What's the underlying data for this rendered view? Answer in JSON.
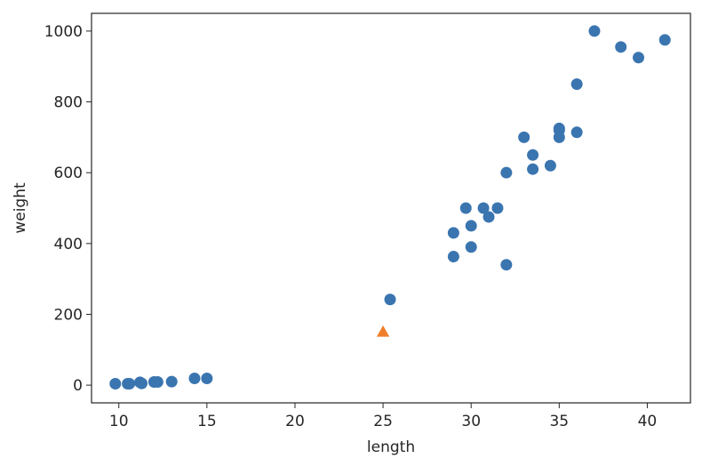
{
  "chart_data": {
    "type": "scatter",
    "title": "",
    "xlabel": "length",
    "ylabel": "weight",
    "xlim": [
      8.45,
      42.45
    ],
    "ylim": [
      -50,
      1050
    ],
    "x_ticks": [
      10,
      15,
      20,
      25,
      30,
      35,
      40
    ],
    "y_ticks": [
      0,
      200,
      400,
      600,
      800,
      1000
    ],
    "x_tick_labels": [
      "10",
      "15",
      "20",
      "25",
      "30",
      "35",
      "40"
    ],
    "y_tick_labels": [
      "0",
      "200",
      "400",
      "600",
      "800",
      "1000"
    ],
    "grid": false,
    "legend": "none",
    "series": [
      {
        "marker": "circle",
        "color": "#3a75b0",
        "points": [
          {
            "x": 9.8,
            "y": 4
          },
          {
            "x": 10.5,
            "y": 4
          },
          {
            "x": 10.6,
            "y": 4
          },
          {
            "x": 11.2,
            "y": 8
          },
          {
            "x": 11.3,
            "y": 5
          },
          {
            "x": 12.0,
            "y": 9
          },
          {
            "x": 12.2,
            "y": 9
          },
          {
            "x": 13.0,
            "y": 10
          },
          {
            "x": 14.3,
            "y": 19
          },
          {
            "x": 15.0,
            "y": 19
          },
          {
            "x": 25.4,
            "y": 242
          },
          {
            "x": 29.0,
            "y": 363
          },
          {
            "x": 29.0,
            "y": 430
          },
          {
            "x": 29.7,
            "y": 500
          },
          {
            "x": 30.0,
            "y": 390
          },
          {
            "x": 30.0,
            "y": 450
          },
          {
            "x": 30.7,
            "y": 500
          },
          {
            "x": 31.0,
            "y": 475
          },
          {
            "x": 31.5,
            "y": 500
          },
          {
            "x": 32.0,
            "y": 340
          },
          {
            "x": 32.0,
            "y": 600
          },
          {
            "x": 33.0,
            "y": 700
          },
          {
            "x": 33.5,
            "y": 610
          },
          {
            "x": 33.5,
            "y": 650
          },
          {
            "x": 34.5,
            "y": 620
          },
          {
            "x": 35.0,
            "y": 700
          },
          {
            "x": 35.0,
            "y": 725
          },
          {
            "x": 35.0,
            "y": 720
          },
          {
            "x": 36.0,
            "y": 714
          },
          {
            "x": 36.0,
            "y": 850
          },
          {
            "x": 37.0,
            "y": 1000
          },
          {
            "x": 38.5,
            "y": 955
          },
          {
            "x": 39.5,
            "y": 925
          },
          {
            "x": 41.0,
            "y": 975
          }
        ]
      },
      {
        "marker": "triangle",
        "color": "#ef7f2a",
        "points": [
          {
            "x": 25.0,
            "y": 150
          }
        ]
      }
    ]
  }
}
